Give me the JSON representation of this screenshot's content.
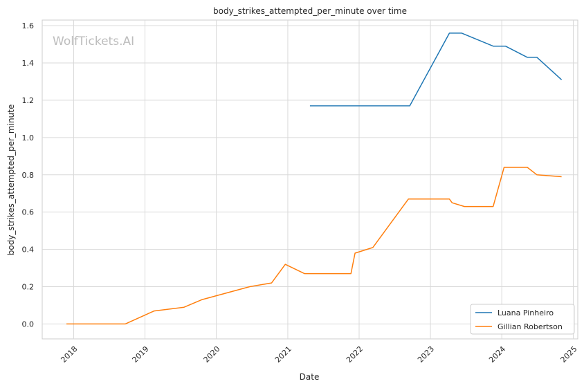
{
  "chart_data": {
    "type": "line",
    "title": "body_strikes_attempted_per_minute over time",
    "xlabel": "Date",
    "ylabel": "body_strikes_attempted_per_minute",
    "watermark": "WolfTickets.AI",
    "xlim": [
      "2017-07-24",
      "2025-01-24"
    ],
    "ylim": [
      -0.08,
      1.63
    ],
    "x_ticks": [
      "2018",
      "2019",
      "2020",
      "2021",
      "2022",
      "2023",
      "2024",
      "2025"
    ],
    "y_ticks": [
      "0.0",
      "0.2",
      "0.4",
      "0.6",
      "0.8",
      "1.0",
      "1.2",
      "1.4",
      "1.6"
    ],
    "grid": true,
    "legend_position": "lower-right",
    "series": [
      {
        "name": "Luana Pinheiro",
        "color": "#1f77b4",
        "points": [
          [
            "2021-04-24",
            1.17
          ],
          [
            "2022-09-17",
            1.17
          ],
          [
            "2023-04-08",
            1.56
          ],
          [
            "2023-06-10",
            1.56
          ],
          [
            "2023-11-18",
            1.49
          ],
          [
            "2024-01-20",
            1.49
          ],
          [
            "2024-05-11",
            1.43
          ],
          [
            "2024-06-29",
            1.43
          ],
          [
            "2024-11-02",
            1.31
          ]
        ]
      },
      {
        "name": "Gillian Robertson",
        "color": "#ff7f0e",
        "points": [
          [
            "2017-11-25",
            0.0
          ],
          [
            "2018-09-22",
            0.0
          ],
          [
            "2019-02-17",
            0.07
          ],
          [
            "2019-07-20",
            0.09
          ],
          [
            "2019-10-18",
            0.13
          ],
          [
            "2020-06-20",
            0.2
          ],
          [
            "2020-10-10",
            0.22
          ],
          [
            "2020-12-19",
            0.32
          ],
          [
            "2021-03-27",
            0.27
          ],
          [
            "2021-11-20",
            0.27
          ],
          [
            "2021-12-11",
            0.38
          ],
          [
            "2022-03-12",
            0.41
          ],
          [
            "2022-09-10",
            0.67
          ],
          [
            "2023-04-08",
            0.67
          ],
          [
            "2023-04-22",
            0.65
          ],
          [
            "2023-06-24",
            0.63
          ],
          [
            "2023-11-18",
            0.63
          ],
          [
            "2024-01-13",
            0.84
          ],
          [
            "2024-05-11",
            0.84
          ],
          [
            "2024-06-29",
            0.8
          ],
          [
            "2024-11-02",
            0.79
          ]
        ]
      }
    ]
  }
}
